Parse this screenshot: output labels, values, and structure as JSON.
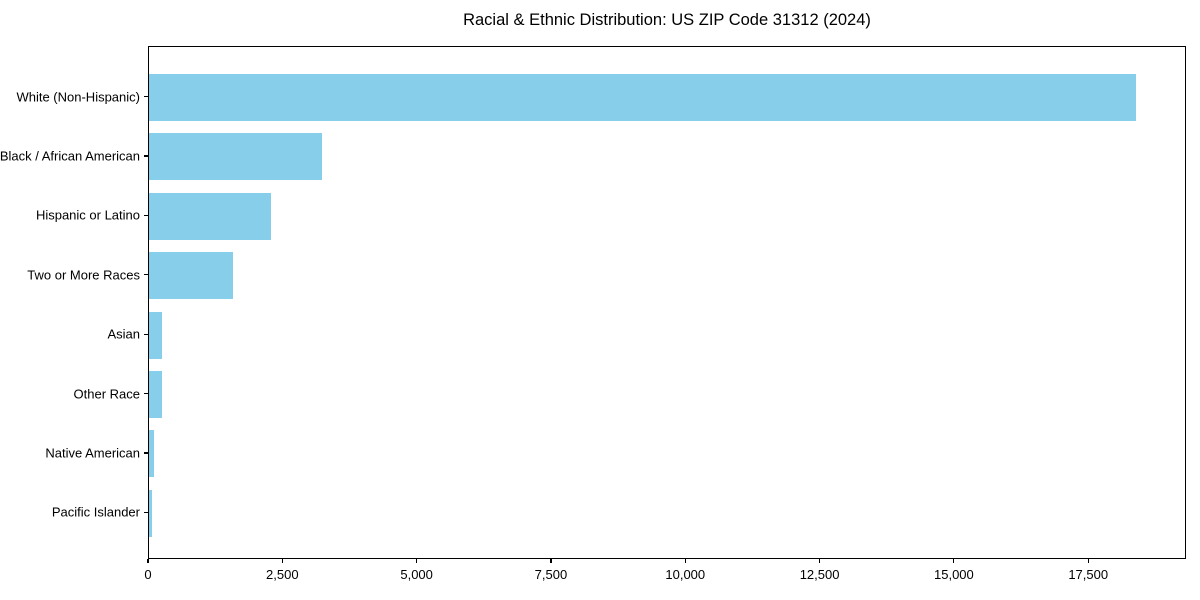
{
  "chart_data": {
    "type": "bar",
    "orientation": "horizontal",
    "title": "Racial & Ethnic Distribution: US ZIP Code 31312 (2024)",
    "categories": [
      "White (Non-Hispanic)",
      "Black / African American",
      "Hispanic or Latino",
      "Two or More Races",
      "Asian",
      "Other Race",
      "Native American",
      "Pacific Islander"
    ],
    "values": [
      18400,
      3230,
      2270,
      1560,
      240,
      250,
      85,
      50
    ],
    "xlabel": "",
    "ylabel": "",
    "xlim": [
      0,
      19320
    ],
    "x_ticks": [
      0,
      2500,
      5000,
      7500,
      10000,
      12500,
      15000,
      17500
    ],
    "x_tick_labels": [
      "0",
      "2,500",
      "5,000",
      "7,500",
      "10,000",
      "12,500",
      "15,000",
      "17,500"
    ],
    "bar_color": "#87CEEB",
    "grid": false,
    "legend": "none",
    "spines": "full-box"
  }
}
